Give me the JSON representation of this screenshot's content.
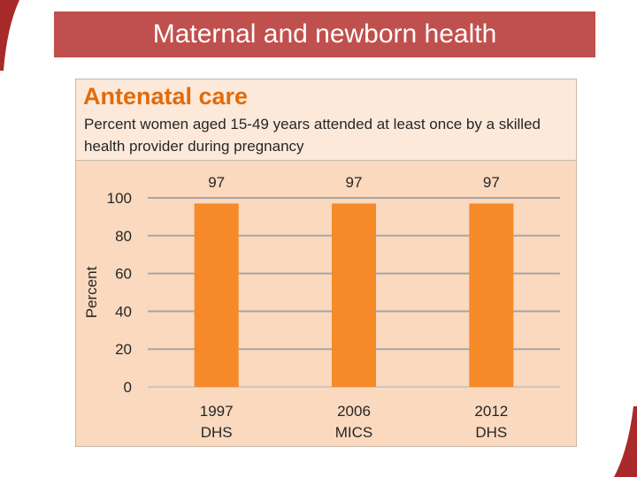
{
  "slide": {
    "title": "Maternal and newborn health"
  },
  "card": {
    "heading": "Antenatal care",
    "subtitle": "Percent women aged 15-49 years attended at least once by a skilled health provider during pregnancy"
  },
  "colors": {
    "banner": "#c0504d",
    "bar": "#f68a29",
    "heading": "#e26b0a",
    "card_bg": "#fad9be"
  },
  "chart_data": {
    "type": "bar",
    "categories": [
      [
        "1997",
        "DHS"
      ],
      [
        "2006",
        "MICS"
      ],
      [
        "2012",
        "DHS"
      ]
    ],
    "values": [
      97,
      97,
      97
    ],
    "data_labels": [
      "97",
      "97",
      "97"
    ],
    "ylabel": "Percent",
    "xlabel": "",
    "ylim": [
      0,
      100
    ],
    "yticks": [
      0,
      20,
      40,
      60,
      80,
      100
    ],
    "grid": true
  }
}
